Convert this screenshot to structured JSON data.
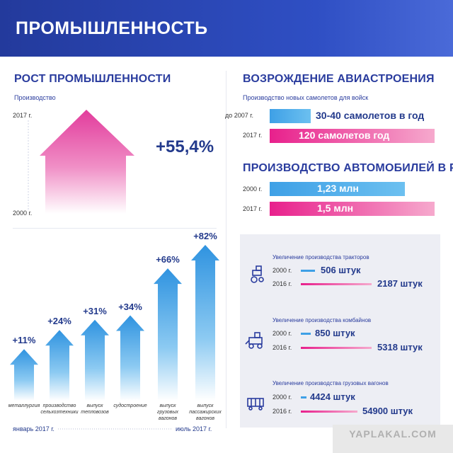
{
  "header": {
    "title": "ПРОМЫШЛЕННОСТЬ"
  },
  "industry": {
    "title": "РОСТ ПРОМЫШЛЕННОСТИ",
    "subtitle": "Производство",
    "year_top": "2017 г.",
    "year_bottom": "2000 г.",
    "growth_label": "+55,4%"
  },
  "chart_data": {
    "type": "bar",
    "categories": [
      "металлургия",
      "производство сельхозтехники",
      "выпуск тепловозов",
      "судостроение",
      "выпуск грузовых вагонов",
      "выпуск пассажирских вагонов"
    ],
    "values": [
      11,
      24,
      31,
      34,
      66,
      82
    ],
    "value_labels": [
      "+11%",
      "+24%",
      "+31%",
      "+34%",
      "+66%",
      "+82%"
    ],
    "period_start": "январь 2017 г.",
    "period_end": "июль 2017 г.",
    "ylim": [
      0,
      82
    ]
  },
  "aviation": {
    "title": "ВОЗРОЖДЕНИЕ АВИАСТРОЕНИЯ",
    "subtitle": "Производство новых самолетов для войск",
    "rows": [
      {
        "year": "до 2007 г.",
        "value": "30-40 самолетов в год"
      },
      {
        "year": "2017 г.",
        "value": "120 самолетов год"
      }
    ]
  },
  "auto": {
    "title": "ПРОИЗВОДСТВО АВТОМОБИЛЕЙ В РФ",
    "rows": [
      {
        "year": "2000 г.",
        "value": "1,23 млн"
      },
      {
        "year": "2017 г.",
        "value": "1,5 млн"
      }
    ]
  },
  "machinery": [
    {
      "title": "Увеличение производства тракторов",
      "icon": "tractor-icon",
      "rows": [
        {
          "year": "2000 г.",
          "value": "506 штук"
        },
        {
          "year": "2016 г.",
          "value": "2187 штук"
        }
      ]
    },
    {
      "title": "Увеличение производства комбайнов",
      "icon": "harvester-icon",
      "rows": [
        {
          "year": "2000 г.",
          "value": "850 штук"
        },
        {
          "year": "2016 г.",
          "value": "5318 штук"
        }
      ]
    },
    {
      "title": "Увеличение производства грузовых вагонов",
      "icon": "freight-wagon-icon",
      "rows": [
        {
          "year": "2000 г.",
          "value": "4424 штук"
        },
        {
          "year": "2016 г.",
          "value": "54900 штук"
        }
      ]
    }
  ],
  "watermark": "YAPLAKAL.COM",
  "colors": {
    "blue": "#3ea0e6",
    "pink": "#e8208c",
    "navy": "#233a8c",
    "header": "#2f4fc4"
  }
}
